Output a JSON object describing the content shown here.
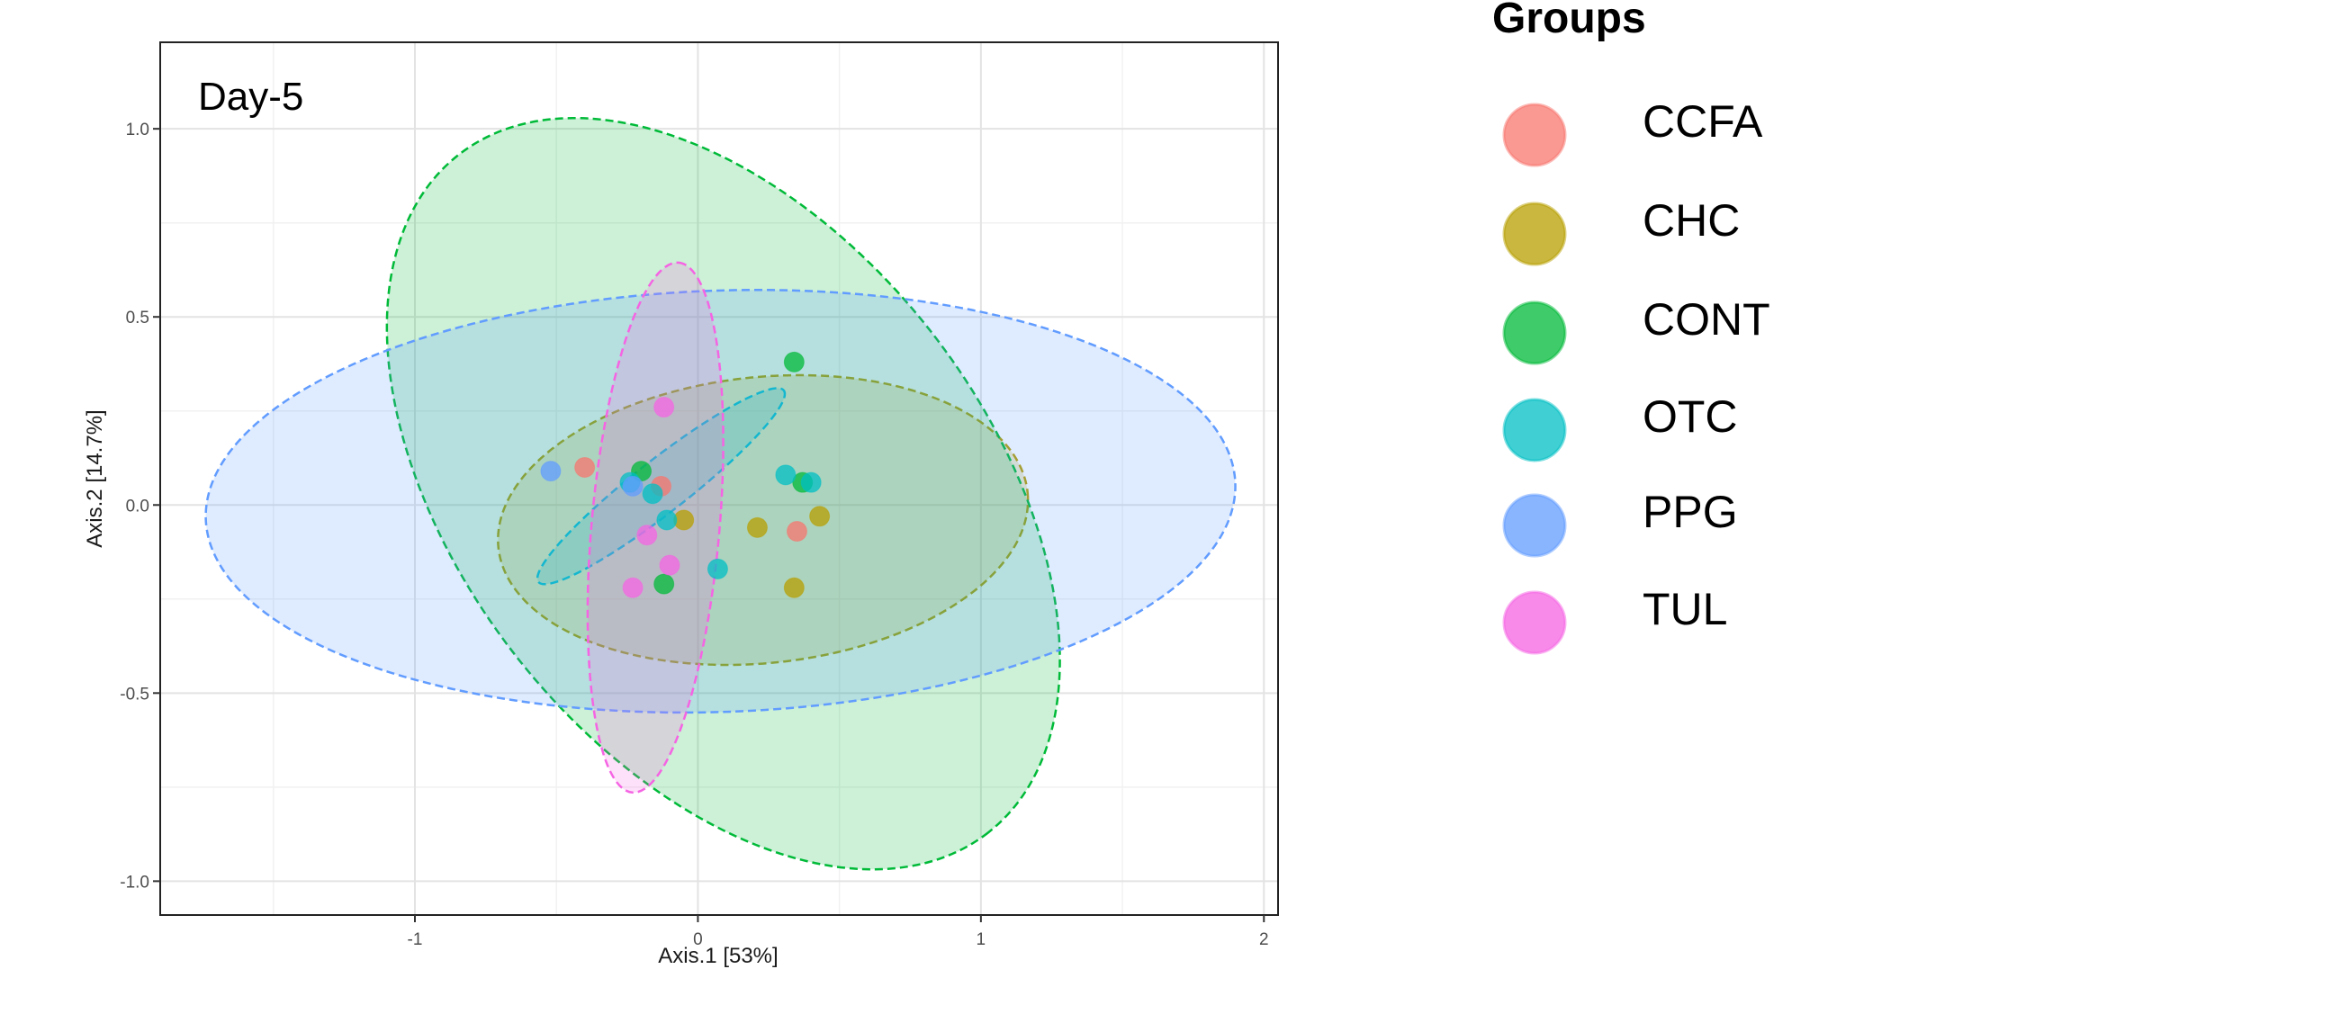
{
  "chart_data": {
    "type": "scatter",
    "title": "",
    "panel_label": "Day-5",
    "xlabel": "Axis.1   [53%]",
    "ylabel": "Axis.2   [14.7%]",
    "xlim": [
      -1.9,
      2.05
    ],
    "ylim": [
      -1.09,
      1.23
    ],
    "x_ticks": [
      -1,
      0,
      1,
      2
    ],
    "x_tick_labels": [
      "-1",
      "0",
      "1",
      "2"
    ],
    "y_ticks": [
      -1.0,
      -0.5,
      0.0,
      0.5,
      1.0
    ],
    "y_tick_labels": [
      "-1.0",
      "-0.5",
      "0.0",
      "0.5",
      "1.0"
    ],
    "grid": true,
    "legend_title": "Groups",
    "legend_position": "right",
    "series": [
      {
        "name": "CCFA",
        "color": "#F8766D",
        "points": [
          [
            -0.4,
            0.1
          ],
          [
            -0.13,
            0.05
          ],
          [
            0.35,
            -0.07
          ]
        ],
        "ellipse": null
      },
      {
        "name": "CHC",
        "color": "#B79F00",
        "points": [
          [
            -0.05,
            -0.04
          ],
          [
            0.21,
            -0.06
          ],
          [
            0.43,
            -0.03
          ],
          [
            0.34,
            -0.22
          ]
        ],
        "ellipse": {
          "cx": 0.23,
          "cy": -0.04,
          "rx": 0.94,
          "ry": 0.38,
          "angle": -6
        }
      },
      {
        "name": "CONT",
        "color": "#00BA38",
        "points": [
          [
            0.34,
            0.38
          ],
          [
            -0.2,
            0.09
          ],
          [
            0.37,
            0.06
          ],
          [
            -0.12,
            -0.21
          ]
        ],
        "ellipse": {
          "cx": 0.09,
          "cy": 0.03,
          "rx": 1.52,
          "ry": 0.7,
          "angle": 52
        }
      },
      {
        "name": "OTC",
        "color": "#00BFC4",
        "points": [
          [
            -0.24,
            0.06
          ],
          [
            -0.16,
            0.03
          ],
          [
            -0.11,
            -0.04
          ],
          [
            0.31,
            0.08
          ],
          [
            0.07,
            -0.17
          ],
          [
            0.4,
            0.06
          ]
        ],
        "ellipse": {
          "cx": -0.13,
          "cy": 0.05,
          "rx": 0.55,
          "ry": 0.07,
          "angle": -38
        }
      },
      {
        "name": "PPG",
        "color": "#619CFF",
        "points": [
          [
            -0.52,
            0.09
          ],
          [
            -0.23,
            0.05
          ]
        ],
        "ellipse": {
          "cx": 0.08,
          "cy": 0.01,
          "rx": 1.82,
          "ry": 0.56,
          "angle": -2
        }
      },
      {
        "name": "TUL",
        "color": "#F564E3",
        "points": [
          [
            -0.12,
            0.26
          ],
          [
            -0.18,
            -0.08
          ],
          [
            -0.1,
            -0.16
          ],
          [
            -0.23,
            -0.22
          ]
        ],
        "ellipse": {
          "cx": -0.15,
          "cy": -0.06,
          "rx": 0.94,
          "ry": 0.17,
          "angle": -85
        }
      }
    ]
  }
}
